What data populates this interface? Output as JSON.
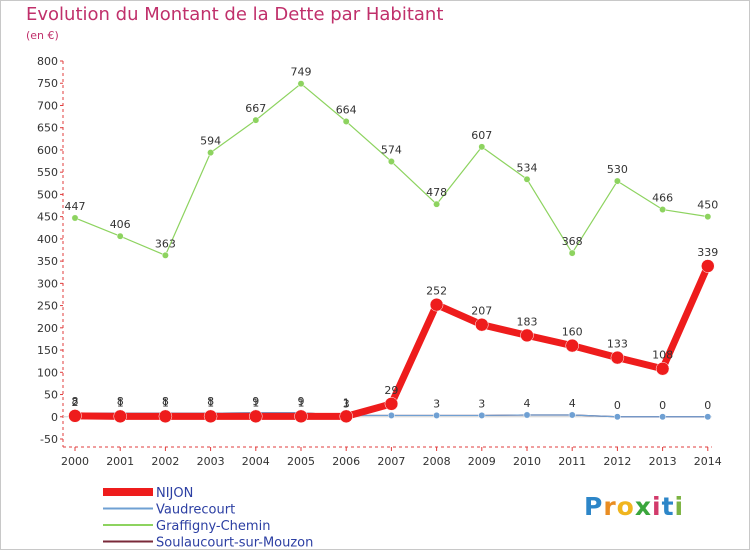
{
  "chart_data": {
    "type": "line",
    "title": "Evolution du Montant de la Dette par Habitant",
    "subtitle": "(en €)",
    "x": [
      "2000",
      "2001",
      "2002",
      "2003",
      "2004",
      "2005",
      "2006",
      "2007",
      "2008",
      "2009",
      "2010",
      "2011",
      "2012",
      "2013",
      "2014"
    ],
    "ylim": [
      -50,
      800
    ],
    "yticks": [
      -50,
      0,
      50,
      100,
      150,
      200,
      250,
      300,
      350,
      400,
      450,
      500,
      550,
      600,
      650,
      700,
      750,
      800
    ],
    "grid": false,
    "legend": "bottom-left",
    "series": [
      {
        "name": "NIJON",
        "color": "#ee1c1c",
        "values": [
          2,
          1,
          1,
          1,
          1,
          1,
          1,
          29,
          252,
          207,
          183,
          160,
          133,
          108,
          339
        ],
        "labels": [
          "2",
          "1",
          "1",
          "1",
          "1",
          "1",
          "1",
          "29",
          "252",
          "207",
          "183",
          "160",
          "133",
          "108",
          "339"
        ]
      },
      {
        "name": "Vaudrecourt",
        "color": "#6fa0d3",
        "values": [
          8,
          8,
          8,
          8,
          9,
          9,
          3,
          3,
          3,
          3,
          4,
          4,
          0,
          0,
          0
        ],
        "labels": [
          "8",
          "8",
          "8",
          "8",
          "9",
          "9",
          "3",
          "3",
          "3",
          "3",
          "4",
          "4",
          "0",
          "0",
          "0"
        ]
      },
      {
        "name": "Graffigny-Chemin",
        "color": "#8dd35f",
        "values": [
          447,
          406,
          363,
          594,
          667,
          749,
          664,
          574,
          478,
          607,
          534,
          368,
          530,
          466,
          450
        ],
        "labels": [
          "447",
          "406",
          "363",
          "594",
          "667",
          "749",
          "664",
          "574",
          "478",
          "607",
          "534",
          "368",
          "530",
          "466",
          "450"
        ]
      },
      {
        "name": "Soulaucourt-sur-Mouzon",
        "color": "#7a2a3a",
        "values": [
          8,
          8,
          8,
          8,
          9,
          9,
          3,
          3,
          3,
          3,
          4,
          4,
          0,
          0,
          0
        ],
        "labels": []
      }
    ]
  },
  "logo": {
    "letters": [
      "P",
      "r",
      "o",
      "x",
      "i",
      "t",
      "i"
    ]
  }
}
